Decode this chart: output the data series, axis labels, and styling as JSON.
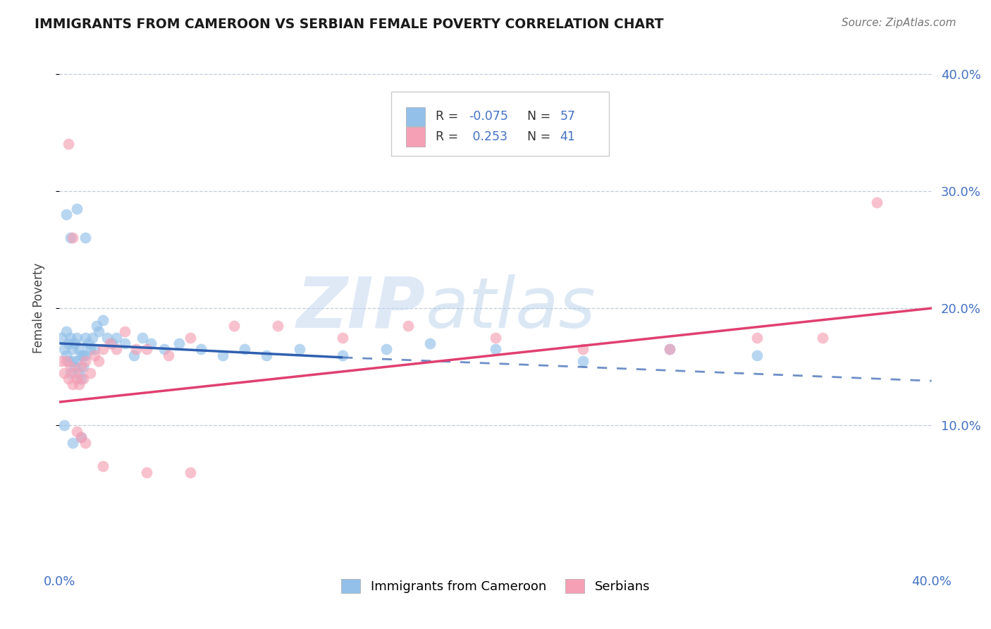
{
  "title": "IMMIGRANTS FROM CAMEROON VS SERBIAN FEMALE POVERTY CORRELATION CHART",
  "source": "Source: ZipAtlas.com",
  "ylabel": "Female Poverty",
  "watermark_zip": "ZIP",
  "watermark_atlas": "atlas",
  "xlim": [
    0.0,
    0.4
  ],
  "ylim": [
    -0.02,
    0.42
  ],
  "yticks": [
    0.1,
    0.2,
    0.3,
    0.4
  ],
  "ytick_labels": [
    "10.0%",
    "20.0%",
    "30.0%",
    "40.0%"
  ],
  "color_blue": "#92C0E8",
  "color_pink": "#F5A0B5",
  "color_blue_line": "#3060B0",
  "color_pink_line": "#E04070",
  "blue_scatter_x": [
    0.001,
    0.002,
    0.003,
    0.003,
    0.004,
    0.004,
    0.005,
    0.005,
    0.006,
    0.006,
    0.007,
    0.007,
    0.008,
    0.008,
    0.009,
    0.009,
    0.01,
    0.01,
    0.011,
    0.011,
    0.012,
    0.012,
    0.013,
    0.014,
    0.015,
    0.016,
    0.017,
    0.018,
    0.02,
    0.022,
    0.024,
    0.026,
    0.03,
    0.034,
    0.038,
    0.042,
    0.048,
    0.055,
    0.065,
    0.075,
    0.085,
    0.095,
    0.11,
    0.13,
    0.15,
    0.17,
    0.2,
    0.24,
    0.28,
    0.32,
    0.003,
    0.005,
    0.008,
    0.012,
    0.002,
    0.006,
    0.01
  ],
  "blue_scatter_y": [
    0.175,
    0.165,
    0.18,
    0.16,
    0.17,
    0.155,
    0.175,
    0.145,
    0.165,
    0.155,
    0.17,
    0.15,
    0.175,
    0.155,
    0.165,
    0.145,
    0.16,
    0.14,
    0.16,
    0.15,
    0.175,
    0.16,
    0.17,
    0.165,
    0.175,
    0.165,
    0.185,
    0.18,
    0.19,
    0.175,
    0.17,
    0.175,
    0.17,
    0.16,
    0.175,
    0.17,
    0.165,
    0.17,
    0.165,
    0.16,
    0.165,
    0.16,
    0.165,
    0.16,
    0.165,
    0.17,
    0.165,
    0.155,
    0.165,
    0.16,
    0.28,
    0.26,
    0.285,
    0.26,
    0.1,
    0.085,
    0.09
  ],
  "pink_scatter_x": [
    0.001,
    0.002,
    0.003,
    0.004,
    0.005,
    0.006,
    0.007,
    0.008,
    0.009,
    0.01,
    0.011,
    0.012,
    0.014,
    0.016,
    0.018,
    0.02,
    0.023,
    0.026,
    0.03,
    0.035,
    0.04,
    0.05,
    0.06,
    0.08,
    0.1,
    0.13,
    0.16,
    0.2,
    0.24,
    0.28,
    0.32,
    0.35,
    0.375,
    0.004,
    0.006,
    0.008,
    0.01,
    0.012,
    0.02,
    0.04,
    0.06
  ],
  "pink_scatter_y": [
    0.155,
    0.145,
    0.155,
    0.14,
    0.15,
    0.135,
    0.145,
    0.14,
    0.135,
    0.15,
    0.14,
    0.155,
    0.145,
    0.16,
    0.155,
    0.165,
    0.17,
    0.165,
    0.18,
    0.165,
    0.165,
    0.16,
    0.175,
    0.185,
    0.185,
    0.175,
    0.185,
    0.175,
    0.165,
    0.165,
    0.175,
    0.175,
    0.29,
    0.34,
    0.26,
    0.095,
    0.09,
    0.085,
    0.065,
    0.06,
    0.06
  ],
  "blue_trend_start_x": 0.0,
  "blue_trend_start_y": 0.17,
  "blue_trend_end_solid_x": 0.13,
  "blue_trend_end_solid_y": 0.158,
  "blue_trend_end_dash_x": 0.4,
  "blue_trend_end_dash_y": 0.138,
  "pink_trend_start_x": 0.0,
  "pink_trend_start_y": 0.12,
  "pink_trend_end_x": 0.4,
  "pink_trend_end_y": 0.2,
  "blue_legend_label": "Immigrants from Cameroon",
  "pink_legend_label": "Serbians",
  "legend_r1": "-0.075",
  "legend_n1": "57",
  "legend_r2": "0.253",
  "legend_n2": "41"
}
